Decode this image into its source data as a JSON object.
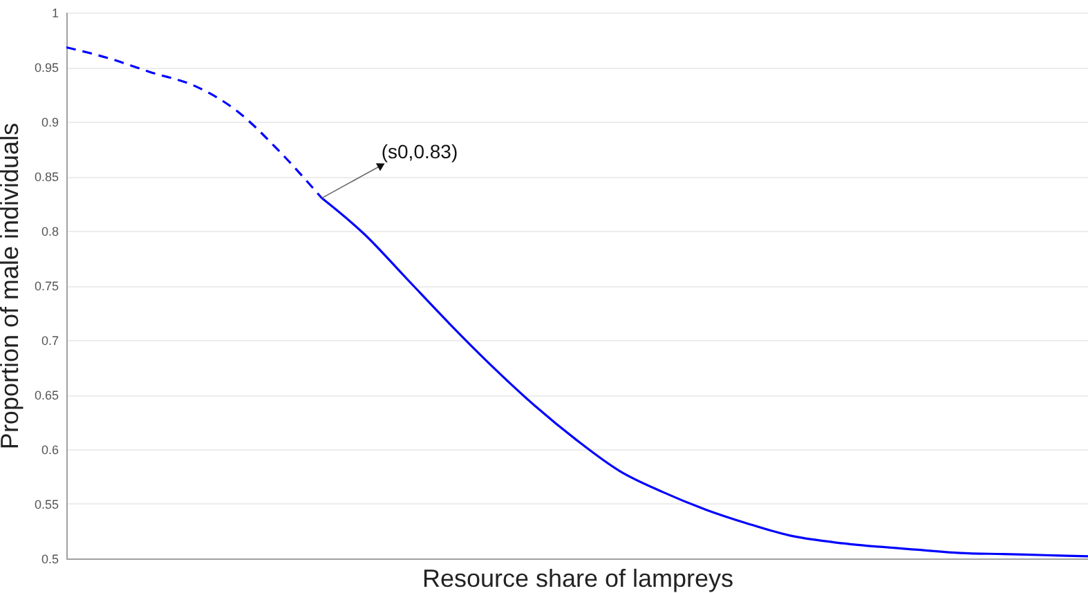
{
  "chart_data": {
    "type": "line",
    "xlabel": "Resource share of lampreys",
    "ylabel": "Proportion of male individuals",
    "categories": [
      null,
      null,
      null,
      null,
      null,
      null,
      null,
      null,
      null,
      null,
      null,
      null,
      null,
      null,
      null,
      null,
      null,
      null,
      null,
      null,
      null,
      null,
      null,
      null,
      null
    ],
    "series": [
      {
        "color": "#0000ff",
        "line_style": "dashed",
        "values": [
          0.968,
          0.958,
          0.945,
          0.933,
          0.91,
          0.873,
          0.83,
          null,
          null,
          null,
          null,
          null,
          null,
          null,
          null,
          null,
          null,
          null,
          null,
          null,
          null,
          null,
          null,
          null,
          null
        ]
      },
      {
        "color": "#0000ff",
        "line_style": "solid",
        "values": [
          null,
          null,
          null,
          null,
          null,
          null,
          0.83,
          0.797,
          0.756,
          0.715,
          0.676,
          0.64,
          0.608,
          0.58,
          0.561,
          0.545,
          0.532,
          0.521,
          0.515,
          0.511,
          0.508,
          0.505,
          0.504,
          0.503,
          0.502
        ]
      }
    ],
    "annotations": [
      "(s0,0.83)"
    ],
    "ylim": [
      0.5,
      1
    ],
    "yticks": [
      0.5,
      0.55,
      0.6,
      0.65,
      0.7,
      0.75,
      0.8,
      0.85,
      0.9,
      0.95,
      1
    ],
    "grid": "y",
    "tick_labels": "y"
  }
}
